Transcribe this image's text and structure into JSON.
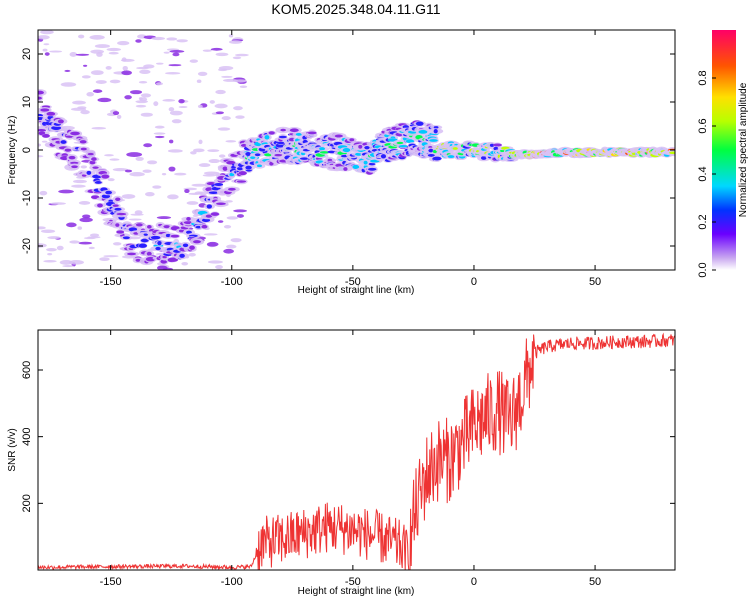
{
  "title": "KOM5.2025.348.04.11.G11",
  "chart_data": [
    {
      "type": "heatmap",
      "xlabel": "Height of straight line (km)",
      "ylabel": "Frequency (Hz)",
      "xlim": [
        -180,
        83
      ],
      "ylim": [
        -25,
        25
      ],
      "xticks": [
        -150,
        -100,
        -50,
        0,
        50
      ],
      "yticks": [
        -20,
        -10,
        0,
        10,
        20
      ],
      "colorbar": {
        "label": "Normalized spectral amplitude",
        "range": [
          0,
          1
        ],
        "ticks": [
          0.0,
          0.2,
          0.4,
          0.6,
          0.8
        ]
      },
      "ridge": [
        {
          "x": -180,
          "f": 8
        },
        {
          "x": -160,
          "f": -3
        },
        {
          "x": -140,
          "f": -19
        },
        {
          "x": -120,
          "f": -20
        },
        {
          "x": -105,
          "f": -8
        },
        {
          "x": -95,
          "f": -2
        },
        {
          "x": -80,
          "f": 1
        },
        {
          "x": -60,
          "f": 0
        },
        {
          "x": -45,
          "f": -2
        },
        {
          "x": -35,
          "f": 1
        },
        {
          "x": -25,
          "f": 3
        },
        {
          "x": -10,
          "f": 0
        },
        {
          "x": 0,
          "f": 0
        },
        {
          "x": 20,
          "f": -1
        },
        {
          "x": 40,
          "f": -0.5
        },
        {
          "x": 60,
          "f": -0.5
        },
        {
          "x": 83,
          "f": -0.5
        }
      ]
    },
    {
      "type": "line",
      "xlabel": "Height of straight line (km)",
      "ylabel": "SNR (v/v)",
      "xlim": [
        -180,
        83
      ],
      "ylim": [
        0,
        720
      ],
      "xticks": [
        -150,
        -100,
        -50,
        0,
        50
      ],
      "yticks": [
        200,
        400,
        600
      ],
      "series": [
        {
          "name": "SNR",
          "color": "#ee3333",
          "x": [
            -180,
            -150,
            -120,
            -100,
            -92,
            -88,
            -80,
            -70,
            -60,
            -50,
            -40,
            -30,
            -27,
            -25,
            -20,
            -15,
            -10,
            -5,
            0,
            5,
            10,
            15,
            20,
            25,
            30,
            40,
            50,
            60,
            70,
            83
          ],
          "y": [
            8,
            10,
            12,
            8,
            10,
            80,
            90,
            110,
            130,
            120,
            100,
            70,
            40,
            150,
            280,
            330,
            330,
            380,
            430,
            460,
            480,
            440,
            530,
            650,
            670,
            680,
            680,
            685,
            685,
            690
          ]
        }
      ]
    }
  ]
}
